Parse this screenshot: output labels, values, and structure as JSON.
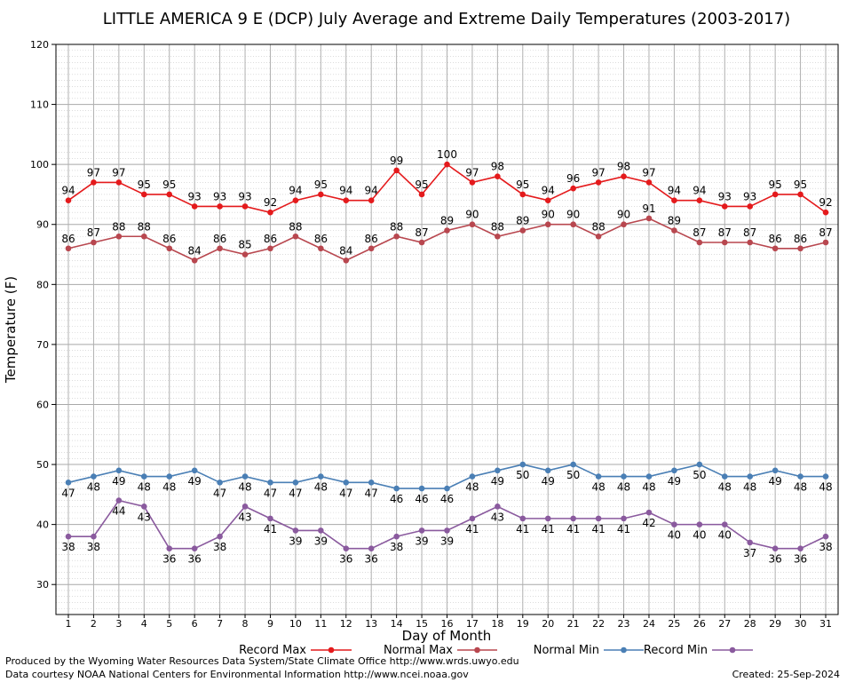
{
  "chart_data": {
    "type": "line",
    "title": "LITTLE AMERICA 9 E (DCP) July Average and Extreme Daily Temperatures (2003-2017)",
    "xlabel": "Day of Month",
    "ylabel": "Temperature (F)",
    "ylim": [
      25,
      120
    ],
    "yticks": [
      30,
      40,
      50,
      60,
      70,
      80,
      90,
      100,
      110,
      120
    ],
    "x": [
      1,
      2,
      3,
      4,
      5,
      6,
      7,
      8,
      9,
      10,
      11,
      12,
      13,
      14,
      15,
      16,
      17,
      18,
      19,
      20,
      21,
      22,
      23,
      24,
      25,
      26,
      27,
      28,
      29,
      30,
      31
    ],
    "grid": true,
    "legend_position": "bottom",
    "series": [
      {
        "name": "Record Max",
        "color": "#e41a1c",
        "values": [
          94,
          97,
          97,
          95,
          95,
          93,
          93,
          93,
          92,
          94,
          95,
          94,
          94,
          99,
          95,
          100,
          97,
          98,
          95,
          94,
          96,
          97,
          98,
          97,
          94,
          94,
          93,
          93,
          95,
          95,
          92
        ]
      },
      {
        "name": "Normal Max",
        "color": "#b8474f",
        "values": [
          86,
          87,
          88,
          88,
          86,
          84,
          86,
          85,
          86,
          88,
          86,
          84,
          86,
          88,
          87,
          89,
          90,
          88,
          89,
          90,
          90,
          88,
          90,
          91,
          89,
          87,
          87,
          87,
          86,
          86,
          87
        ]
      },
      {
        "name": "Normal Min",
        "color": "#4a7fb5",
        "values": [
          47,
          48,
          49,
          48,
          48,
          49,
          47,
          48,
          47,
          47,
          48,
          47,
          47,
          46,
          46,
          46,
          48,
          49,
          50,
          49,
          50,
          48,
          48,
          48,
          49,
          50,
          48,
          48,
          49,
          48,
          48
        ]
      },
      {
        "name": "Record Min",
        "color": "#8a5a9e",
        "values": [
          38,
          38,
          44,
          43,
          36,
          36,
          38,
          43,
          41,
          39,
          39,
          36,
          36,
          38,
          39,
          39,
          41,
          43,
          41,
          41,
          41,
          41,
          41,
          42,
          40,
          40,
          40,
          37,
          36,
          36,
          38
        ]
      }
    ]
  },
  "footer": {
    "producer": "Produced by the Wyoming Water Resources Data System/State Climate Office http://www.wrds.uwyo.edu",
    "courtesy": "Data courtesy NOAA National Centers for Environmental Information http://www.ncei.noaa.gov",
    "created": "Created:  25-Sep-2024"
  }
}
